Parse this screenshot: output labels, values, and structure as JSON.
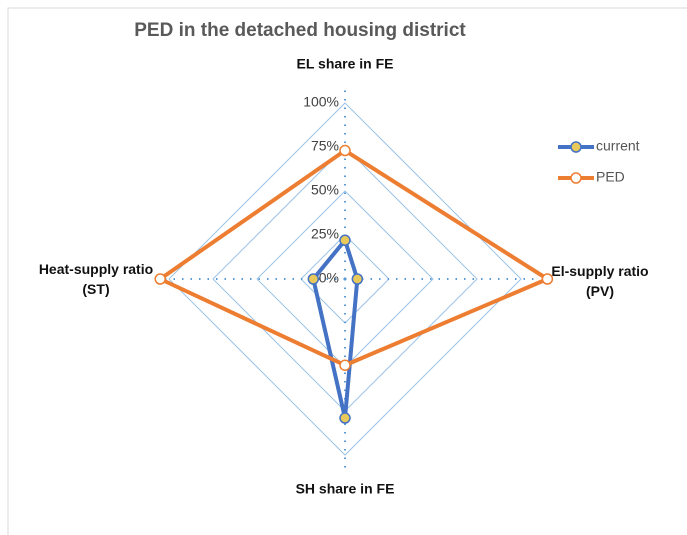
{
  "chart_data": {
    "type": "radar",
    "title": "PED in the detached housing district",
    "categories": [
      "EL share in FE",
      "El-supply ratio (PV)",
      "SH share in FE",
      "Heat-supply ratio (ST)"
    ],
    "series": [
      {
        "name": "current",
        "color": "#4472c4",
        "marker_fill": "#e8c95a",
        "values": [
          22,
          7,
          79,
          18
        ]
      },
      {
        "name": "PED",
        "color": "#ed7d31",
        "marker_fill": "#ffffff",
        "values": [
          73,
          115,
          49,
          105
        ]
      }
    ],
    "rlim": [
      0,
      100
    ],
    "rticks": [
      {
        "value": 0,
        "label": "0%"
      },
      {
        "value": 25,
        "label": "25%"
      },
      {
        "value": 50,
        "label": "50%"
      },
      {
        "value": 75,
        "label": "75%"
      },
      {
        "value": 100,
        "label": "100%"
      }
    ],
    "grid": true,
    "legend": "right"
  }
}
